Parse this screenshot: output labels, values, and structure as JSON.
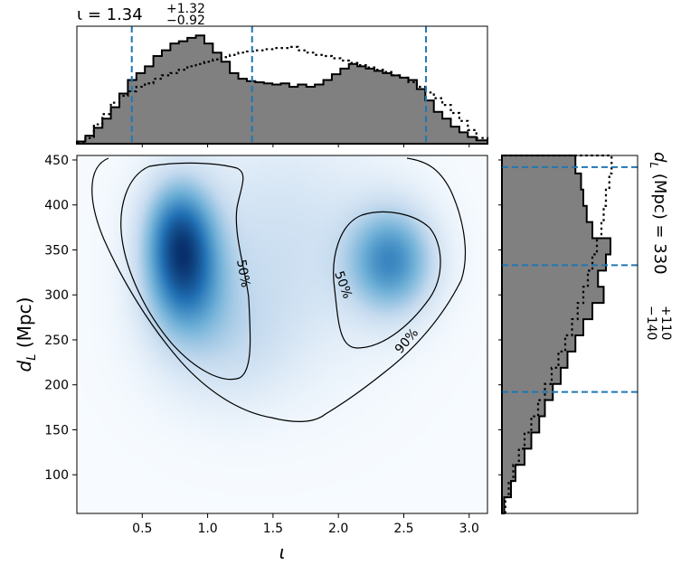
{
  "chart_data": {
    "type": "corner-2d",
    "colors": {
      "hist_fill": "#808080",
      "hist_edge": "#000000",
      "prior": "#000000",
      "quantile": "#1f77b4",
      "density_low": "#f7fbff",
      "density_high": "#08306b"
    },
    "x_param": {
      "symbol": "ι",
      "median": 1.34,
      "plus": "+1.32",
      "minus": "−0.92",
      "quantiles": [
        0.42,
        1.34,
        2.67
      ],
      "lim": [
        0.0,
        3.14
      ],
      "ticks": [
        0.5,
        1.0,
        1.5,
        2.0,
        2.5,
        3.0
      ],
      "tick_labels": [
        "0.5",
        "1.0",
        "1.5",
        "2.0",
        "2.5",
        "3.0"
      ]
    },
    "y_param": {
      "symbol_main": "d",
      "symbol_sub": "L",
      "unit": "(Mpc)",
      "median": 330,
      "plus": "+110",
      "minus": "−140",
      "quantiles": [
        192,
        333,
        442
      ],
      "lim": [
        57,
        455
      ],
      "ticks": [
        100,
        150,
        200,
        250,
        300,
        350,
        400,
        450
      ],
      "tick_labels": [
        "100",
        "150",
        "200",
        "250",
        "300",
        "350",
        "400",
        "450"
      ]
    },
    "title_prefix": "ι = 1.34",
    "right_title_prefix": "(Mpc) = 330",
    "contour_labels": [
      "50%",
      "50%",
      "90%"
    ],
    "x_hist": {
      "bins_x": [
        0.0,
        0.065,
        0.13,
        0.195,
        0.26,
        0.325,
        0.39,
        0.455,
        0.52,
        0.585,
        0.65,
        0.715,
        0.78,
        0.845,
        0.91,
        0.975,
        1.04,
        1.105,
        1.17,
        1.235,
        1.3,
        1.365,
        1.43,
        1.495,
        1.56,
        1.625,
        1.69,
        1.755,
        1.82,
        1.885,
        1.95,
        2.015,
        2.08,
        2.145,
        2.21,
        2.275,
        2.34,
        2.405,
        2.47,
        2.535,
        2.6,
        2.665,
        2.73,
        2.795,
        2.86,
        2.925,
        2.99,
        3.055,
        3.14
      ],
      "posterior": [
        0.02,
        0.07,
        0.14,
        0.22,
        0.32,
        0.44,
        0.56,
        0.62,
        0.68,
        0.77,
        0.82,
        0.88,
        0.9,
        0.93,
        0.95,
        0.88,
        0.8,
        0.72,
        0.62,
        0.57,
        0.55,
        0.54,
        0.53,
        0.52,
        0.53,
        0.5,
        0.52,
        0.5,
        0.52,
        0.56,
        0.61,
        0.66,
        0.7,
        0.68,
        0.66,
        0.64,
        0.62,
        0.6,
        0.58,
        0.56,
        0.48,
        0.38,
        0.28,
        0.22,
        0.15,
        0.1,
        0.06,
        0.03
      ],
      "prior": [
        0.01,
        0.05,
        0.17,
        0.26,
        0.36,
        0.42,
        0.46,
        0.5,
        0.53,
        0.57,
        0.6,
        0.62,
        0.65,
        0.68,
        0.7,
        0.72,
        0.74,
        0.76,
        0.78,
        0.8,
        0.81,
        0.82,
        0.83,
        0.84,
        0.84,
        0.85,
        0.82,
        0.8,
        0.78,
        0.77,
        0.75,
        0.73,
        0.71,
        0.69,
        0.67,
        0.65,
        0.63,
        0.6,
        0.58,
        0.54,
        0.5,
        0.45,
        0.4,
        0.34,
        0.27,
        0.2,
        0.12,
        0.05
      ]
    },
    "y_hist": {
      "bins_y": [
        57,
        75,
        93,
        111,
        129,
        147,
        165,
        183,
        201,
        219,
        237,
        255,
        273,
        291,
        309,
        327,
        345,
        363,
        381,
        399,
        417,
        435,
        455
      ],
      "posterior": [
        0.02,
        0.08,
        0.12,
        0.2,
        0.26,
        0.33,
        0.38,
        0.45,
        0.52,
        0.58,
        0.65,
        0.72,
        0.8,
        0.9,
        0.85,
        0.92,
        0.96,
        0.8,
        0.75,
        0.72,
        0.7,
        0.65
      ],
      "prior": [
        0.03,
        0.06,
        0.1,
        0.15,
        0.2,
        0.26,
        0.32,
        0.38,
        0.44,
        0.5,
        0.56,
        0.62,
        0.67,
        0.72,
        0.76,
        0.8,
        0.84,
        0.88,
        0.9,
        0.92,
        0.95,
        0.97
      ]
    },
    "density_peaks": [
      {
        "x": 0.82,
        "y": 320,
        "sx": 0.2,
        "sy": 45,
        "w": 1.0
      },
      {
        "x": 0.78,
        "y": 375,
        "sx": 0.18,
        "sy": 40,
        "w": 0.85
      },
      {
        "x": 2.4,
        "y": 338,
        "sx": 0.22,
        "sy": 40,
        "w": 0.95
      },
      {
        "x": 1.55,
        "y": 350,
        "sx": 0.55,
        "sy": 90,
        "w": 0.28
      },
      {
        "x": 1.1,
        "y": 250,
        "sx": 0.35,
        "sy": 50,
        "w": 0.25
      }
    ]
  }
}
